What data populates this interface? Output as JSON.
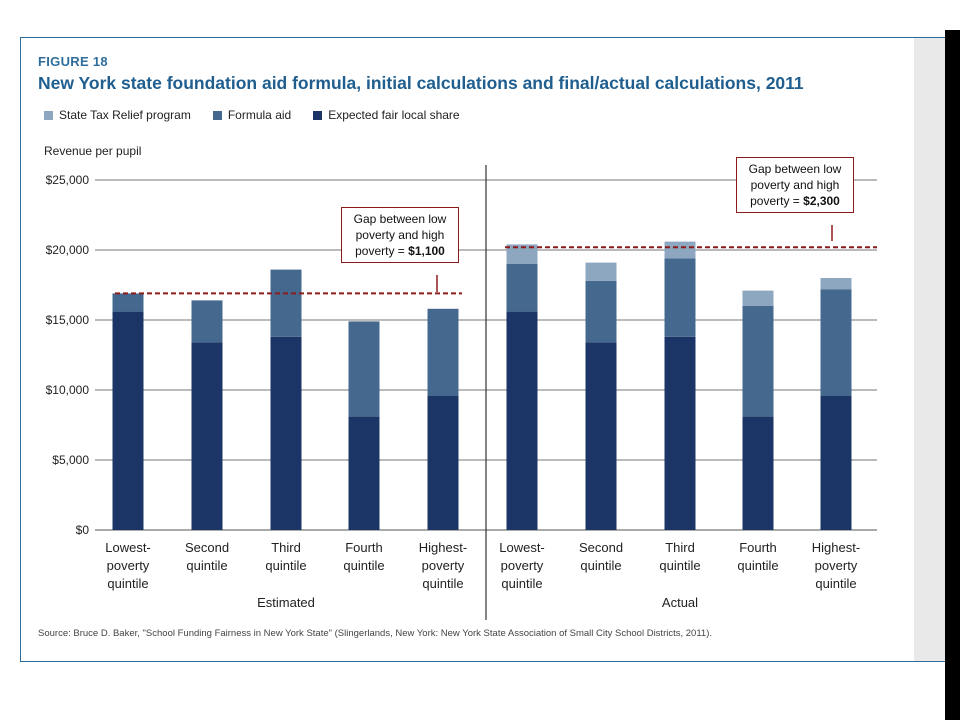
{
  "figure_label": "FIGURE 18",
  "title": "New York state foundation aid formula, initial calculations and final/actual calculations, 2011",
  "source": "Source: Bruce D. Baker, \"School Funding Fairness in New York State\" (Slingerlands, New York: New York State Association of Small City School Districts, 2011).",
  "colors": {
    "state_tax_relief": "#8da7c0",
    "formula_aid": "#45688f",
    "expected_local_share": "#1b3566",
    "gap_line": "#8c1c1c"
  },
  "chart_data": {
    "type": "bar",
    "stacked": true,
    "ylabel": "Revenue per pupil",
    "ylim": [
      0,
      25000
    ],
    "yticks": [
      "$0",
      "$5,000",
      "$10,000",
      "$15,000",
      "$20,000",
      "$25,000"
    ],
    "yticks_values": [
      0,
      5000,
      10000,
      15000,
      20000,
      25000
    ],
    "groups": [
      {
        "name": "Estimated",
        "categories": [
          "Lowest-\npoverty\nquintile",
          "Second\nquintile",
          "Third\nquintile",
          "Fourth\nquintile",
          "Highest-\npoverty\nquintile"
        ],
        "gap_line_value": 16900,
        "gap_callout": {
          "text": "Gap between low poverty and high poverty = ",
          "amount": "$1,100"
        }
      },
      {
        "name": "Actual",
        "categories": [
          "Lowest-\npoverty\nquintile",
          "Second\nquintile",
          "Third\nquintile",
          "Fourth\nquintile",
          "Highest-\npoverty\nquintile"
        ],
        "gap_line_value": 20200,
        "gap_callout": {
          "text": "Gap between low poverty and high poverty = ",
          "amount": "$2,300"
        }
      }
    ],
    "series": [
      {
        "name": "State Tax Relief program",
        "values": [
          0,
          0,
          0,
          0,
          0,
          1400,
          1300,
          1200,
          1100,
          800
        ]
      },
      {
        "name": "Formula aid",
        "values": [
          1300,
          3000,
          4800,
          6800,
          6200,
          3400,
          4400,
          5600,
          7900,
          7600
        ]
      },
      {
        "name": "Expected fair local share",
        "values": [
          15600,
          13400,
          13800,
          8100,
          9600,
          15600,
          13400,
          13800,
          8100,
          9600
        ]
      }
    ]
  }
}
